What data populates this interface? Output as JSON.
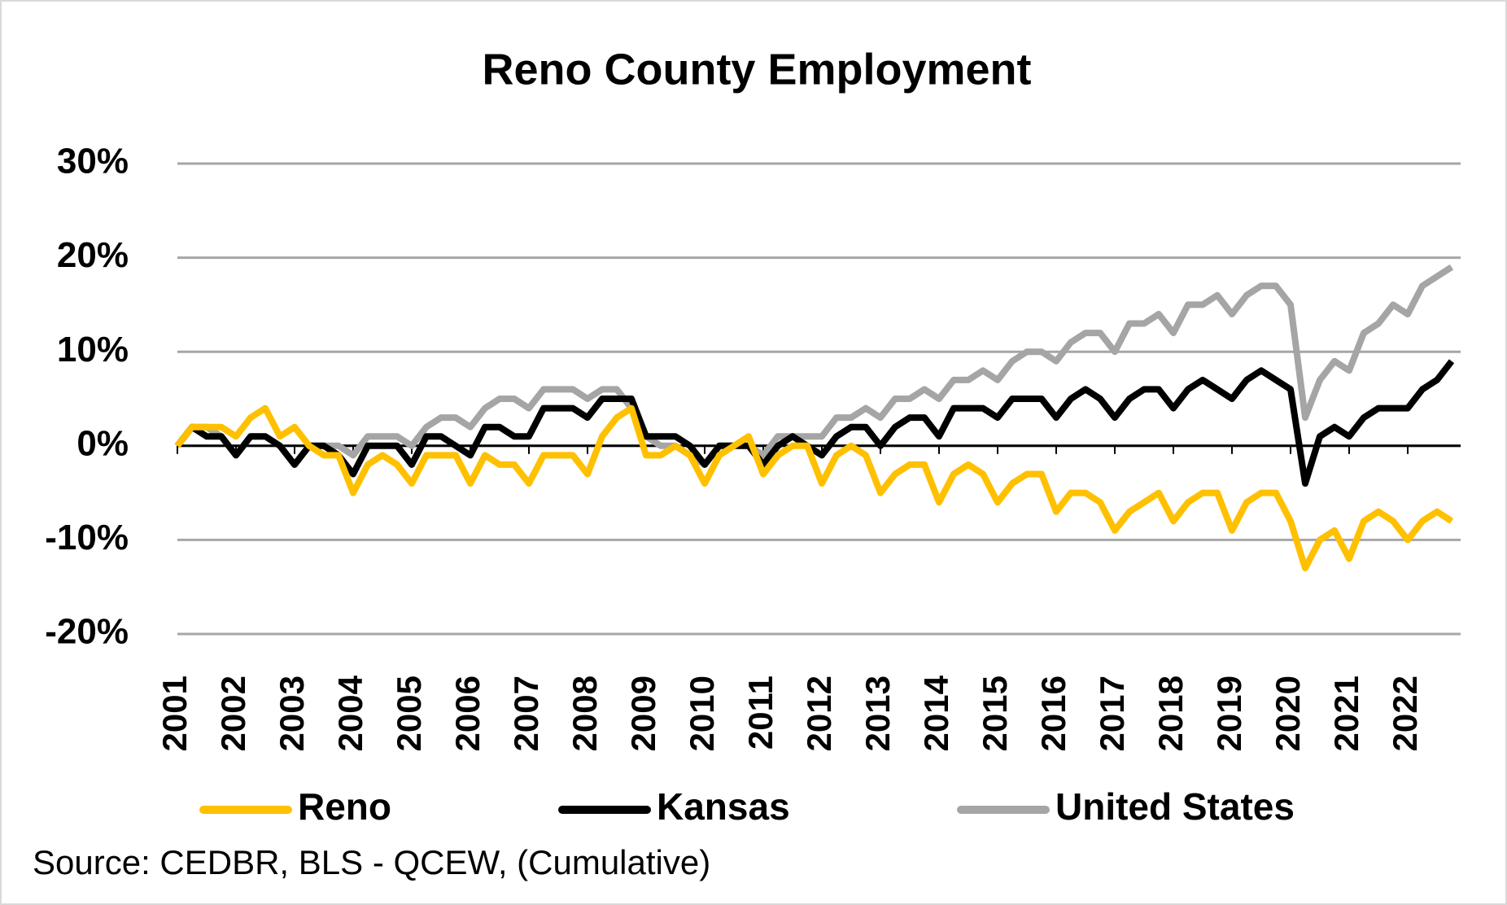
{
  "chart_data": {
    "type": "line",
    "title": "Reno County Employment",
    "source": "Source: CEDBR, BLS - QCEW, (Cumulative)",
    "categories": [
      "2001",
      null,
      null,
      null,
      "2002",
      null,
      null,
      null,
      "2003",
      null,
      null,
      null,
      "2004",
      null,
      null,
      null,
      "2005",
      null,
      null,
      null,
      "2006",
      null,
      null,
      null,
      "2007",
      null,
      null,
      null,
      "2008",
      null,
      null,
      null,
      "2009",
      null,
      null,
      null,
      "2010",
      null,
      null,
      null,
      "2011",
      null,
      null,
      null,
      "2012",
      null,
      null,
      null,
      "2013",
      null,
      null,
      null,
      "2014",
      null,
      null,
      null,
      "2015",
      null,
      null,
      null,
      "2016",
      null,
      null,
      null,
      "2017",
      null,
      null,
      null,
      "2018",
      null,
      null,
      null,
      "2019",
      null,
      null,
      null,
      "2020",
      null,
      null,
      null,
      "2021",
      null,
      null,
      null,
      "2022",
      null,
      null,
      null
    ],
    "series": [
      {
        "name": "Reno",
        "color": "#ffc000",
        "values": [
          0,
          2,
          2,
          2,
          1,
          3,
          4,
          1,
          2,
          0,
          -1,
          -1,
          -5,
          -2,
          -1,
          -2,
          -4,
          -1,
          -1,
          -1,
          -4,
          -1,
          -2,
          -2,
          -4,
          -1,
          -1,
          -1,
          -3,
          1,
          3,
          4,
          -1,
          -1,
          0,
          -1,
          -4,
          -1,
          0,
          1,
          -3,
          -1,
          0,
          0,
          -4,
          -1,
          0,
          -1,
          -5,
          -3,
          -2,
          -2,
          -6,
          -3,
          -2,
          -3,
          -6,
          -4,
          -3,
          -3,
          -7,
          -5,
          -5,
          -6,
          -9,
          -7,
          -6,
          -5,
          -8,
          -6,
          -5,
          -5,
          -9,
          -6,
          -5,
          -5,
          -8,
          -13,
          -10,
          -9,
          -12,
          -8,
          -7,
          -8,
          -10,
          -8,
          -7,
          -8
        ]
      },
      {
        "name": "Kansas",
        "color": "#000000",
        "values": [
          0,
          2,
          1,
          1,
          -1,
          1,
          1,
          0,
          -2,
          0,
          0,
          -1,
          -3,
          0,
          0,
          0,
          -2,
          1,
          1,
          0,
          -1,
          2,
          2,
          1,
          1,
          4,
          4,
          4,
          3,
          5,
          5,
          5,
          1,
          1,
          1,
          0,
          -2,
          0,
          0,
          0,
          -2,
          0,
          1,
          0,
          -1,
          1,
          2,
          2,
          0,
          2,
          3,
          3,
          1,
          4,
          4,
          4,
          3,
          5,
          5,
          5,
          3,
          5,
          6,
          5,
          3,
          5,
          6,
          6,
          4,
          6,
          7,
          6,
          5,
          7,
          8,
          7,
          6,
          -4,
          1,
          2,
          1,
          3,
          4,
          4,
          4,
          6,
          7,
          9
        ]
      },
      {
        "name": "United States",
        "color": "#a5a5a5",
        "values": [
          0,
          2,
          2,
          1,
          -1,
          1,
          1,
          0,
          -2,
          0,
          0,
          0,
          -1,
          1,
          1,
          1,
          0,
          2,
          3,
          3,
          2,
          4,
          5,
          5,
          4,
          6,
          6,
          6,
          5,
          6,
          6,
          4,
          1,
          0,
          0,
          -1,
          -2,
          0,
          0,
          0,
          -1,
          1,
          1,
          1,
          1,
          3,
          3,
          4,
          3,
          5,
          5,
          6,
          5,
          7,
          7,
          8,
          7,
          9,
          10,
          10,
          9,
          11,
          12,
          12,
          10,
          13,
          13,
          14,
          12,
          15,
          15,
          16,
          14,
          16,
          17,
          17,
          15,
          3,
          7,
          9,
          8,
          12,
          13,
          15,
          14,
          17,
          18,
          19
        ]
      }
    ],
    "ylim": [
      -20,
      30
    ],
    "yticks": [
      {
        "value": -20,
        "label": "-20%"
      },
      {
        "value": -10,
        "label": "-10%"
      },
      {
        "value": 0,
        "label": "0%"
      },
      {
        "value": 10,
        "label": "10%"
      },
      {
        "value": 20,
        "label": "20%"
      },
      {
        "value": 30,
        "label": "30%"
      }
    ],
    "grid": true,
    "legend": "bottom"
  }
}
